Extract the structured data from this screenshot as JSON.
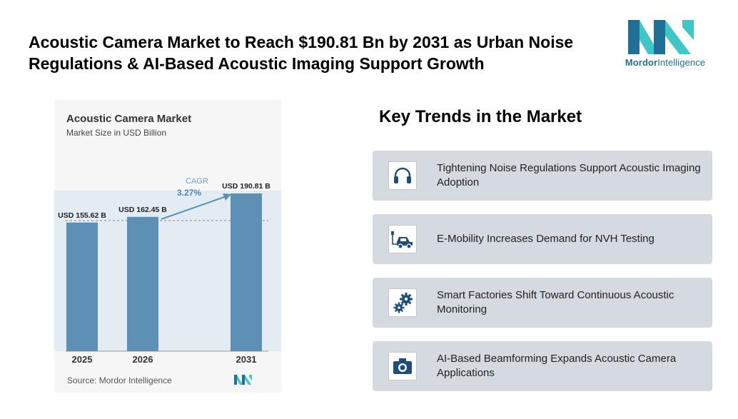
{
  "headline": "Acoustic Camera Market to Reach $190.81 Bn by 2031 as Urban Noise Regulations & AI-Based Acoustic Imaging Support Growth",
  "brand": {
    "name_bold": "Mordor",
    "name_rest": "Intelligence",
    "primary": "#1f6f96",
    "secondary": "#3fc6c6"
  },
  "chart": {
    "title": "Acoustic Camera Market",
    "subtitle": "Market Size in USD Billion",
    "source": "Source: Mordor Intelligence",
    "cagr_label": "CAGR",
    "cagr_value": "3.27%"
  },
  "chart_data": {
    "type": "bar",
    "title": "Acoustic Camera Market",
    "ylabel": "Market Size in USD Billion",
    "categories": [
      "2025",
      "2026",
      "2031"
    ],
    "values": [
      155.62,
      162.45,
      190.81
    ],
    "value_labels": [
      "USD 155.62 B",
      "USD 162.45 B",
      "USD 190.81 B"
    ],
    "ylim": [
      0,
      190.81
    ],
    "bar_color": "#5e90b6",
    "grid": false
  },
  "key_trends": {
    "title": "Key Trends in the Market",
    "items": [
      {
        "icon": "headphones-icon",
        "text": "Tightening Noise Regulations Support Acoustic Imaging Adoption"
      },
      {
        "icon": "electric-car-icon",
        "text": "E-Mobility Increases Demand for NVH Testing"
      },
      {
        "icon": "gears-icon",
        "text": "Smart Factories Shift Toward Continuous Acoustic Monitoring"
      },
      {
        "icon": "camera-icon",
        "text": "AI-Based Beamforming Expands Acoustic Camera Applications"
      }
    ]
  }
}
